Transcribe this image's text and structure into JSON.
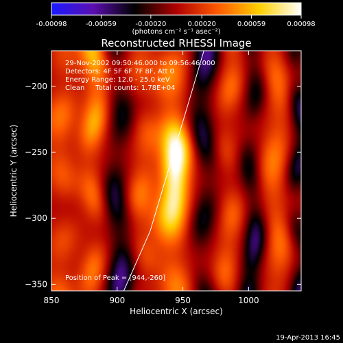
{
  "chart_data": {
    "type": "heatmap",
    "title": "Reconstructed RHESSI Image",
    "xlabel": "Heliocentric X (arcsec)",
    "ylabel": "Heliocentric Y (arcsec)",
    "xlim": [
      850,
      1040
    ],
    "ylim": [
      -355,
      -173
    ],
    "x_ticks": [
      850,
      900,
      950,
      1000
    ],
    "y_ticks": [
      -200,
      -250,
      -300,
      -350
    ],
    "colorbar": {
      "ticks": [
        "-0.00098",
        "-0.00059",
        "-0.00020",
        "0.00020",
        "0.00059",
        "0.00098"
      ],
      "label": "(photons cm⁻² s⁻¹ asec⁻²)",
      "range": [
        -0.00098,
        0.00098
      ],
      "colors": [
        "#1a1aff",
        "#5b0fb0",
        "#000000",
        "#b00000",
        "#ff5a00",
        "#ffd000",
        "#ffffff"
      ]
    },
    "annotations": [
      "29-Nov-2002 09:50:46.000 to 09:56:46.000",
      "Detectors: 4F 5F 6F 7F 8F, Att 0",
      "Energy Range: 12.0 - 25.0 keV",
      "Clean     Total counts: 1.78E+04",
      "Position of Peak = [944,-260]"
    ],
    "peak": {
      "x": 944,
      "y": -260
    },
    "limb_curve": [
      [
        905,
        -355
      ],
      [
        925,
        -310
      ],
      [
        940,
        -260
      ],
      [
        955,
        -210
      ],
      [
        966,
        -173
      ]
    ],
    "grid": false,
    "stripes": [
      {
        "x": 858,
        "sigma": 9,
        "amp": 0.0004
      },
      {
        "x": 882,
        "sigma": 7,
        "amp": 0.00062
      },
      {
        "x": 901,
        "sigma": 7,
        "amp": -0.00065
      },
      {
        "x": 920,
        "sigma": 8,
        "amp": 0.0004
      },
      {
        "x": 943,
        "sigma": 9,
        "amp": 0.0007
      },
      {
        "x": 966,
        "sigma": 7,
        "amp": -0.00065
      },
      {
        "x": 985,
        "sigma": 7,
        "amp": 0.00038
      },
      {
        "x": 1003,
        "sigma": 6,
        "amp": -0.0006
      },
      {
        "x": 1021,
        "sigma": 8,
        "amp": 0.00042
      },
      {
        "x": 1038,
        "sigma": 6,
        "amp": -0.00055
      }
    ],
    "hotspot": {
      "x": 944,
      "y": -265,
      "sx": 7,
      "sy": 22,
      "amp": 0.00055
    }
  },
  "footer": {
    "timestamp": "19-Apr-2013 16:45"
  }
}
